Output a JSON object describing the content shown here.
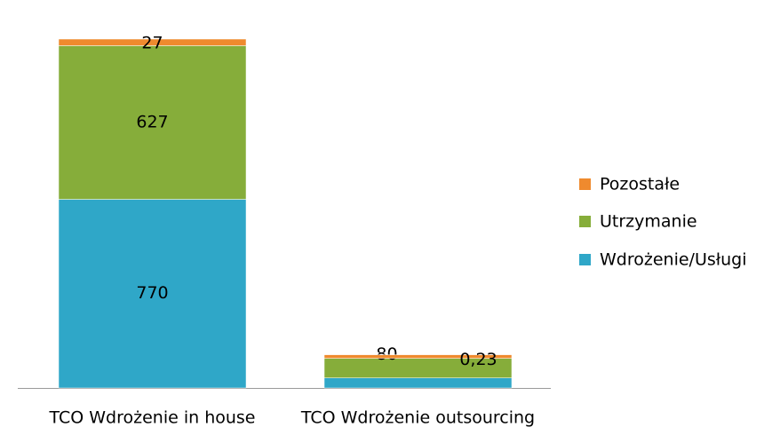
{
  "chart_data": {
    "type": "stacked_bar",
    "categories": [
      "TCO Wdrożenie in house",
      "TCO Wdrożenie outsourcing"
    ],
    "series": [
      {
        "name": "Wdrożenie/Usługi",
        "color": "#2fa7c8",
        "values": [
          770,
          41
        ]
      },
      {
        "name": "Utrzymanie",
        "color": "#86ad3a",
        "values": [
          627,
          80
        ]
      },
      {
        "name": "Pozostałe",
        "color": "#ef8a2e",
        "values": [
          27,
          0.23
        ],
        "value_labels": [
          "27",
          "0,23"
        ]
      }
    ],
    "legend": "right"
  }
}
